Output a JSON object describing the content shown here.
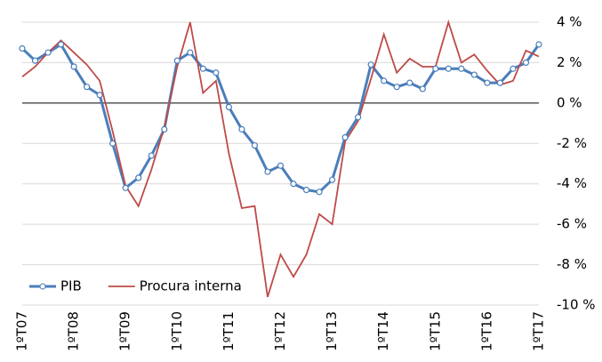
{
  "chart_data": {
    "type": "line",
    "categories": [
      "1ºT07",
      null,
      null,
      null,
      "1ºT08",
      null,
      null,
      null,
      "1ºT09",
      null,
      null,
      null,
      "1ºT10",
      null,
      null,
      null,
      "1ºT11",
      null,
      null,
      null,
      "1ºT12",
      null,
      null,
      null,
      "1ºT13",
      null,
      null,
      null,
      "1ºT14",
      null,
      null,
      null,
      "1ºT15",
      null,
      null,
      null,
      "1ºT16",
      null,
      null,
      null,
      "1ºT17"
    ],
    "series": [
      {
        "name": "PIB",
        "color": "#4a7ebb",
        "marker": true,
        "values": [
          2.7,
          2.1,
          2.5,
          2.9,
          1.8,
          0.8,
          0.4,
          -2.0,
          -4.2,
          -3.7,
          -2.6,
          -1.3,
          2.1,
          2.5,
          1.7,
          1.5,
          -0.2,
          -1.3,
          -2.1,
          -3.4,
          -3.1,
          -4.0,
          -4.3,
          -4.4,
          -3.8,
          -1.7,
          -0.7,
          1.9,
          1.1,
          0.8,
          1.0,
          0.7,
          1.7,
          1.7,
          1.7,
          1.4,
          1.0,
          1.0,
          1.7,
          2.0,
          2.9
        ]
      },
      {
        "name": "Procura interna",
        "color": "#be4b48",
        "marker": false,
        "values": [
          1.3,
          1.8,
          2.5,
          3.1,
          2.5,
          1.9,
          1.1,
          -1.4,
          -4.1,
          -5.1,
          -3.3,
          -1.2,
          1.8,
          4.0,
          0.5,
          1.1,
          -2.5,
          -5.2,
          -5.1,
          -9.6,
          -7.5,
          -8.6,
          -7.5,
          -5.5,
          -6.0,
          -1.9,
          -0.9,
          1.2,
          3.4,
          1.5,
          2.2,
          1.8,
          1.8,
          4.0,
          2.0,
          2.4,
          1.6,
          0.9,
          1.1,
          2.6,
          2.3
        ]
      }
    ],
    "ylim": [
      -10,
      4
    ],
    "yticks": [
      {
        "value": -10,
        "label": "-10 %"
      },
      {
        "value": -8,
        "label": "-8 %"
      },
      {
        "value": -6,
        "label": "-6 %"
      },
      {
        "value": -4,
        "label": "-4 %"
      },
      {
        "value": -2,
        "label": "-2 %"
      },
      {
        "value": 0,
        "label": "0 %"
      },
      {
        "value": 2,
        "label": "2 %"
      },
      {
        "value": 4,
        "label": "4 %"
      }
    ],
    "grid": true
  }
}
